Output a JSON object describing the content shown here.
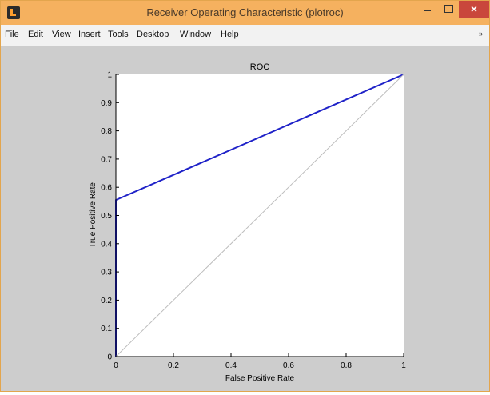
{
  "window": {
    "title": "Receiver Operating Characteristic (plotroc)",
    "icon": "matlab-icon",
    "controls": [
      "minimize-icon",
      "maximize-icon",
      "close-icon"
    ],
    "close_glyph": "×"
  },
  "menubar": {
    "items": [
      "File",
      "Edit",
      "View",
      "Insert",
      "Tools",
      "Desktop",
      "Window",
      "Help"
    ],
    "overflow_glyph": "»"
  },
  "chart_data": {
    "type": "line",
    "title": "ROC",
    "xlabel": "False Positive Rate",
    "ylabel": "True Positive Rate",
    "xlim": [
      0,
      1
    ],
    "ylim": [
      0,
      1
    ],
    "xticks": [
      "0",
      "0.2",
      "0.4",
      "0.6",
      "0.8",
      "1"
    ],
    "yticks": [
      "0",
      "0.1",
      "0.2",
      "0.3",
      "0.4",
      "0.5",
      "0.6",
      "0.7",
      "0.8",
      "0.9",
      "1"
    ],
    "grid": false,
    "series": [
      {
        "x": [
          0,
          0,
          1
        ],
        "y": [
          0,
          0.555,
          1
        ],
        "color": "#1f22c8"
      },
      {
        "x": [
          0,
          1
        ],
        "y": [
          0,
          1
        ],
        "color": "#bdbdbd"
      }
    ]
  }
}
